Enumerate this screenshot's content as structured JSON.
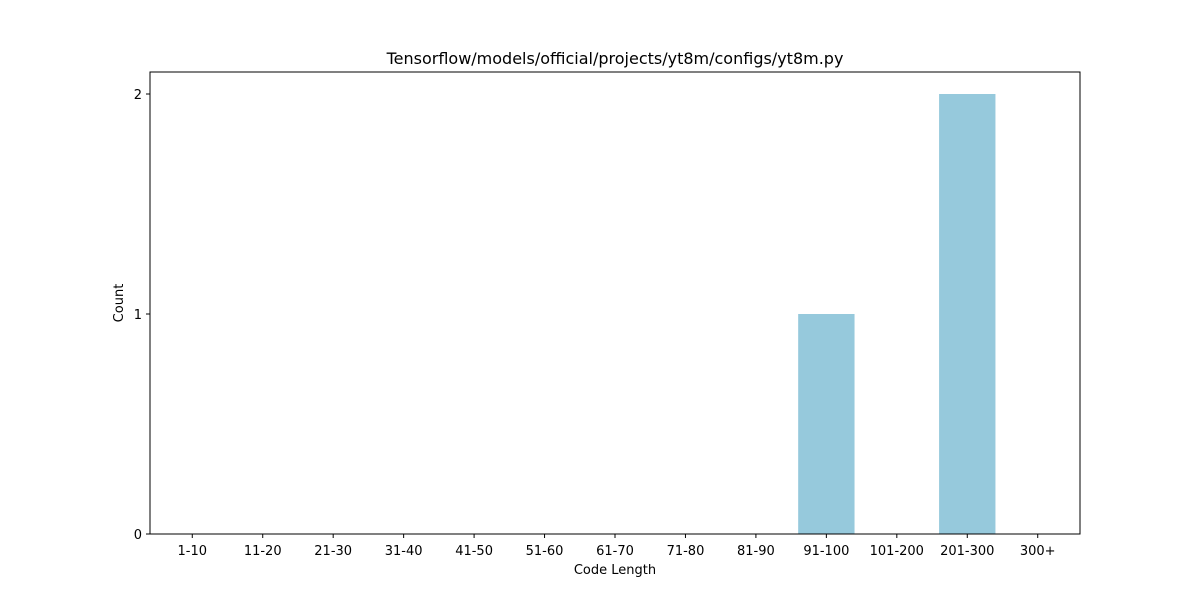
{
  "chart_data": {
    "type": "bar",
    "title": "Tensorflow/models/official/projects/yt8m/configs/yt8m.py",
    "xlabel": "Code Length",
    "ylabel": "Count",
    "categories": [
      "1-10",
      "11-20",
      "21-30",
      "31-40",
      "41-50",
      "51-60",
      "61-70",
      "71-80",
      "81-90",
      "91-100",
      "101-200",
      "201-300",
      "300+"
    ],
    "values": [
      0,
      0,
      0,
      0,
      0,
      0,
      0,
      0,
      0,
      1,
      0,
      2,
      0
    ],
    "ylim": [
      0,
      2.1
    ],
    "yticks": [
      0,
      1,
      2
    ],
    "grid": false,
    "bar_color": "#96c9dc"
  }
}
